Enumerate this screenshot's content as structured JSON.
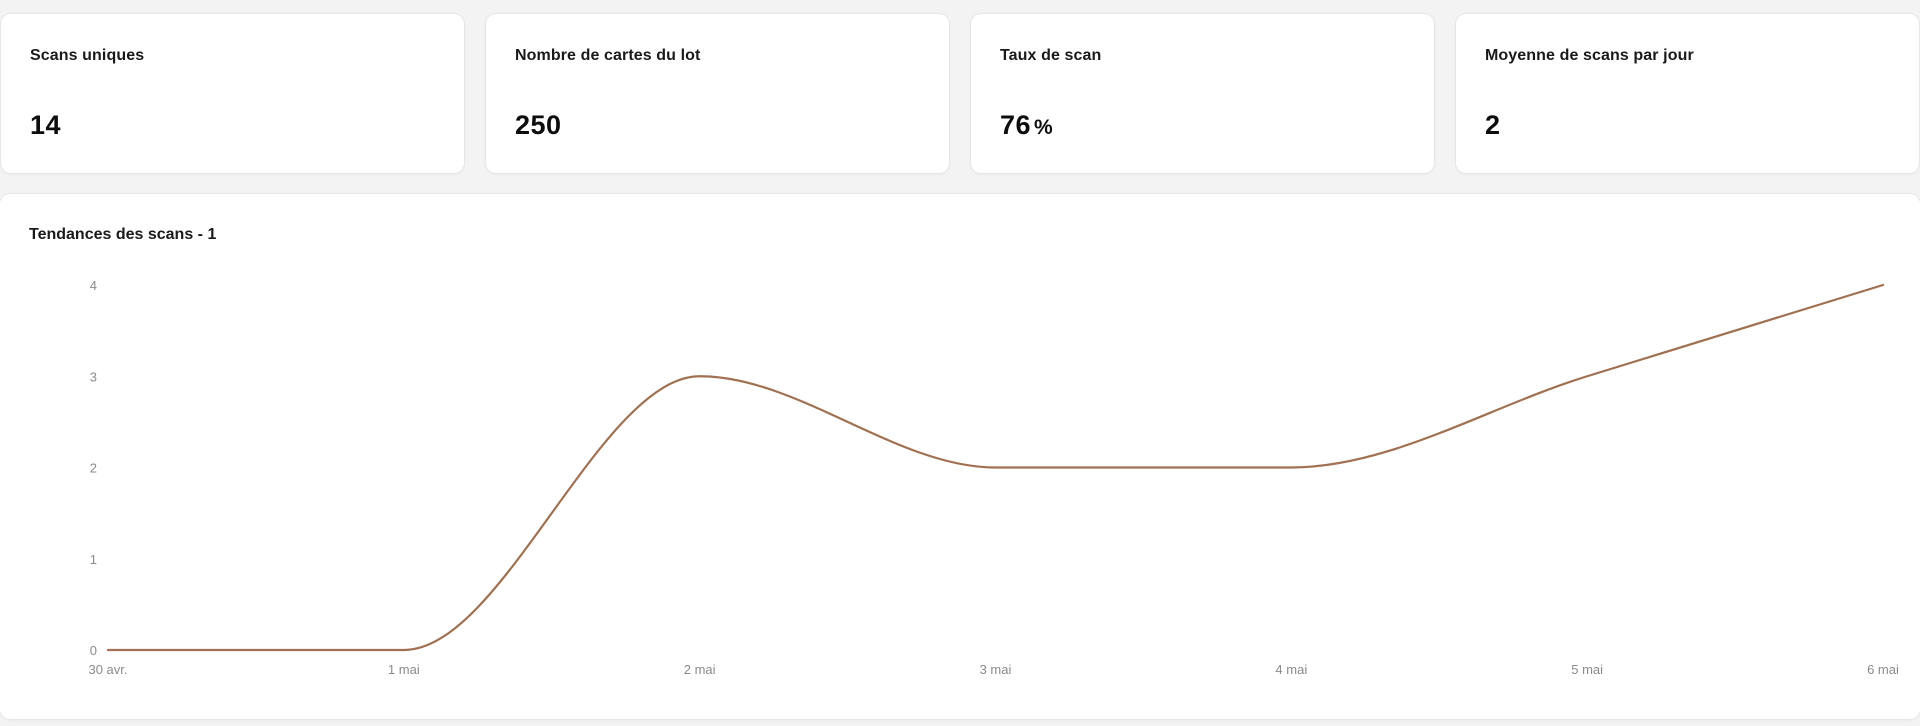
{
  "cards": [
    {
      "label": "Scans uniques",
      "value": "14",
      "unit": ""
    },
    {
      "label": "Nombre de cartes du lot",
      "value": "250",
      "unit": ""
    },
    {
      "label": "Taux de scan",
      "value": "76",
      "unit": "%"
    },
    {
      "label": "Moyenne de scans par jour",
      "value": "2",
      "unit": ""
    }
  ],
  "chart_data": {
    "type": "line",
    "title": "Tendances des scans - 1",
    "x": [
      "30 avr.",
      "1 mai",
      "2 mai",
      "3 mai",
      "4 mai",
      "5 mai",
      "6 mai"
    ],
    "series": [
      {
        "values": [
          0,
          0,
          3,
          2,
          2,
          3,
          4
        ],
        "color": "#a07050"
      }
    ],
    "yticks": [
      0,
      1,
      2,
      3,
      4
    ],
    "ylim": [
      0,
      4
    ],
    "grid": false,
    "smooth": true,
    "xlabel": "",
    "ylabel": ""
  }
}
